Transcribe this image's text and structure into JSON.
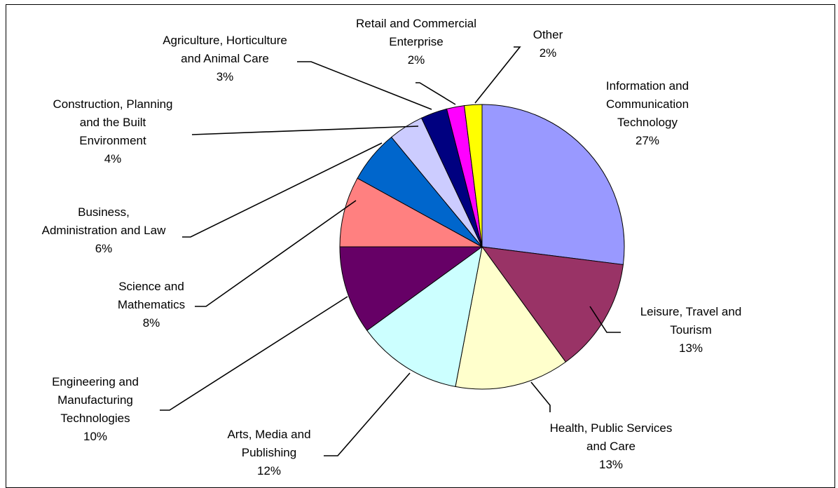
{
  "chart_data": {
    "type": "pie",
    "title": "",
    "slices": [
      {
        "label": [
          "Information and",
          "Communication",
          "Technology"
        ],
        "pct_label": "27%",
        "value": 27,
        "color": "#9999ff"
      },
      {
        "label": [
          "Leisure, Travel and",
          "Tourism"
        ],
        "pct_label": "13%",
        "value": 13,
        "color": "#993366"
      },
      {
        "label": [
          "Health, Public Services",
          "and Care"
        ],
        "pct_label": "13%",
        "value": 13,
        "color": "#ffffcc"
      },
      {
        "label": [
          "Arts, Media and",
          "Publishing"
        ],
        "pct_label": "12%",
        "value": 12,
        "color": "#ccffff"
      },
      {
        "label": [
          "Engineering and",
          "Manufacturing",
          "Technologies"
        ],
        "pct_label": "10%",
        "value": 10,
        "color": "#660066"
      },
      {
        "label": [
          "Science and",
          "Mathematics"
        ],
        "pct_label": "8%",
        "value": 8,
        "color": "#ff8080"
      },
      {
        "label": [
          "Business,",
          "Administration and Law"
        ],
        "pct_label": "6%",
        "value": 6,
        "color": "#0066cc"
      },
      {
        "label": [
          "Construction, Planning",
          "and the Built",
          "Environment"
        ],
        "pct_label": "4%",
        "value": 4,
        "color": "#ccccff"
      },
      {
        "label": [
          "Agriculture, Horticulture",
          "and Animal Care"
        ],
        "pct_label": "3%",
        "value": 3,
        "color": "#000080"
      },
      {
        "label": [
          "Retail and Commercial",
          "Enterprise"
        ],
        "pct_label": "2%",
        "value": 2,
        "color": "#ff00ff"
      },
      {
        "label": [
          "Other"
        ],
        "pct_label": "2%",
        "value": 2,
        "color": "#ffff00"
      }
    ]
  }
}
